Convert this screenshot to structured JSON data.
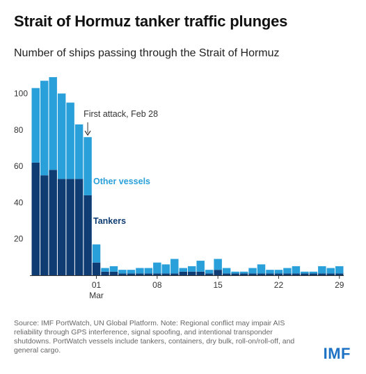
{
  "title": "Strait of Hormuz tanker traffic plunges",
  "subtitle": "Number of ships passing through the Strait of Hormuz",
  "source": "Source: IMF PortWatch, UN Global Platform. Note: Regional conflict may impair AIS reliability through GPS interference, signal spoofing, and intentional transponder shutdowns. PortWatch vessels include tankers, containers, dry bulk, roll-on/roll-off, and general cargo.",
  "logo": "IMF",
  "colors": {
    "tankers": "#0f3d73",
    "other": "#2aa0da",
    "axis": "#333333"
  },
  "chart_data": {
    "type": "bar",
    "stacked": true,
    "x": [
      "Feb 22",
      "Feb 23",
      "Feb 24",
      "Feb 25",
      "Feb 26",
      "Feb 27",
      "Feb 28",
      "Mar 1",
      "Mar 2",
      "Mar 3",
      "Mar 4",
      "Mar 5",
      "Mar 6",
      "Mar 7",
      "Mar 8",
      "Mar 9",
      "Mar 10",
      "Mar 11",
      "Mar 12",
      "Mar 13",
      "Mar 14",
      "Mar 15",
      "Mar 16",
      "Mar 17",
      "Mar 18",
      "Mar 19",
      "Mar 20",
      "Mar 21",
      "Mar 22",
      "Mar 23",
      "Mar 24",
      "Mar 25",
      "Mar 26",
      "Mar 27",
      "Mar 28",
      "Mar 29"
    ],
    "series": [
      {
        "name": "Tankers",
        "values": [
          62,
          55,
          58,
          53,
          53,
          53,
          44,
          7,
          2,
          2,
          1,
          1,
          1,
          1,
          1,
          1,
          1,
          2,
          2,
          2,
          1,
          3,
          1,
          1,
          1,
          1,
          1,
          1,
          1,
          1,
          1,
          1,
          1,
          1,
          1,
          1
        ]
      },
      {
        "name": "Other vessels",
        "values": [
          41,
          52,
          51,
          47,
          42,
          30,
          32,
          10,
          2,
          3,
          2,
          2,
          3,
          3,
          6,
          5,
          8,
          2,
          3,
          6,
          2,
          6,
          3,
          1,
          1,
          3,
          5,
          2,
          2,
          3,
          4,
          1,
          1,
          4,
          3,
          4
        ]
      }
    ],
    "x_ticks": [
      {
        "index": 7,
        "label": "01",
        "sublabel": "Mar"
      },
      {
        "index": 14,
        "label": "08"
      },
      {
        "index": 21,
        "label": "15"
      },
      {
        "index": 28,
        "label": "22"
      },
      {
        "index": 35,
        "label": "29"
      }
    ],
    "y_ticks": [
      20,
      40,
      60,
      80,
      100
    ],
    "ylim": [
      0,
      110
    ],
    "annotation": {
      "text": "First attack, Feb 28",
      "index": 6
    },
    "grid": false,
    "legend": "inline labels"
  }
}
